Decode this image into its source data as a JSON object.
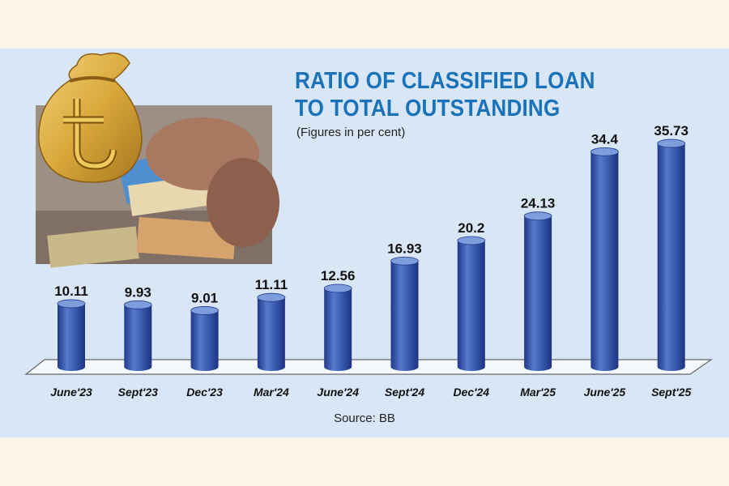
{
  "title_line1": "RATIO OF CLASSIFIED LOAN",
  "title_line2": "TO TOTAL OUTSTANDING",
  "subtitle": "(Figures in per cent)",
  "source": "Source: BB",
  "colors": {
    "bar": "#3b5fb4",
    "bar_dark": "#22398a",
    "bar_light": "#7d9ddd",
    "title": "#1a73b8",
    "panel": "#d9e6f5",
    "page": "#fbf5e9"
  },
  "chart_data": {
    "type": "bar",
    "categories": [
      "June'23",
      "Sept'23",
      "Dec'23",
      "Mar'24",
      "June'24",
      "Sept'24",
      "Dec'24",
      "Mar'25",
      "June'25",
      "Sept'25"
    ],
    "values": [
      10.11,
      9.93,
      9.01,
      11.11,
      12.56,
      16.93,
      20.2,
      24.13,
      34.4,
      35.73
    ],
    "value_labels": [
      "10.11",
      "9.93",
      "9.01",
      "11.11",
      "12.56",
      "16.93",
      "20.2",
      "24.13",
      "34.4",
      "35.73"
    ],
    "title": "RATIO OF CLASSIFIED LOAN TO TOTAL OUTSTANDING",
    "subtitle": "(Figures in per cent)",
    "xlabel": "",
    "ylabel": "",
    "ylim": [
      0,
      36
    ],
    "grid": false,
    "legend": "none"
  }
}
